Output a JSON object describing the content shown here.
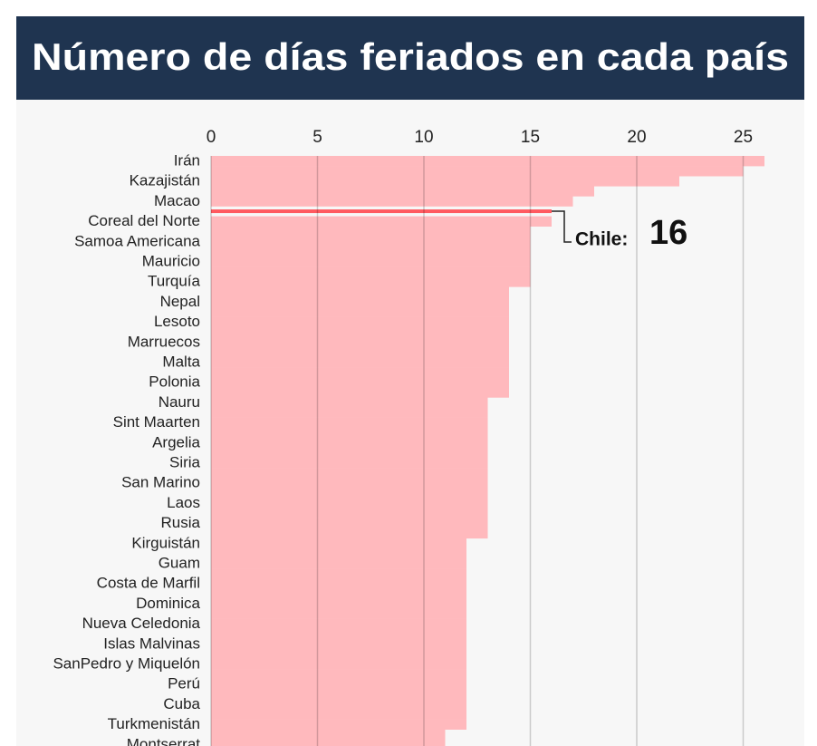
{
  "chart_data": {
    "type": "bar",
    "orientation": "horizontal",
    "title": "Número de días feriados en cada país",
    "categories": [
      "Irán",
      null,
      "Kazajistán",
      null,
      "Macao",
      null,
      "Coreal del Norte",
      null,
      "Samoa Americana",
      null,
      "Mauricio",
      null,
      "Turquía",
      null,
      "Nepal",
      null,
      "Lesoto",
      null,
      "Marruecos",
      null,
      "Malta",
      null,
      "Polonia",
      null,
      "Nauru",
      null,
      "Sint Maarten",
      null,
      "Argelia",
      null,
      "Siria",
      null,
      "San Marino",
      null,
      "Laos",
      null,
      "Rusia",
      null,
      "Kirguistán",
      null,
      "Guam",
      null,
      "Costa de Marfil",
      null,
      "Dominica",
      null,
      "Nueva Celedonia",
      null,
      "Islas Malvinas",
      null,
      "SanPedro y Miquelón",
      null,
      "Perú",
      null,
      "Cuba",
      null,
      "Turkmenistán",
      null,
      "Montserrat"
    ],
    "values": [
      26,
      25,
      22,
      18,
      17,
      16,
      16,
      15,
      15,
      15,
      15,
      15,
      15,
      14,
      14,
      14,
      14,
      14,
      14,
      14,
      14,
      14,
      14,
      14,
      13,
      13,
      13,
      13,
      13,
      13,
      13,
      13,
      13,
      13,
      13,
      13,
      13,
      13,
      12,
      12,
      12,
      12,
      12,
      12,
      12,
      12,
      12,
      12,
      12,
      12,
      12,
      12,
      12,
      12,
      12,
      12,
      12,
      11,
      11
    ],
    "color": "#ffb9bd",
    "highlight": {
      "index": 5,
      "label": "Chile:",
      "color": "#ff5a60"
    },
    "xlim": [
      0,
      26
    ],
    "xticks": [
      0,
      5,
      10,
      15,
      20,
      25
    ],
    "grid": true
  }
}
